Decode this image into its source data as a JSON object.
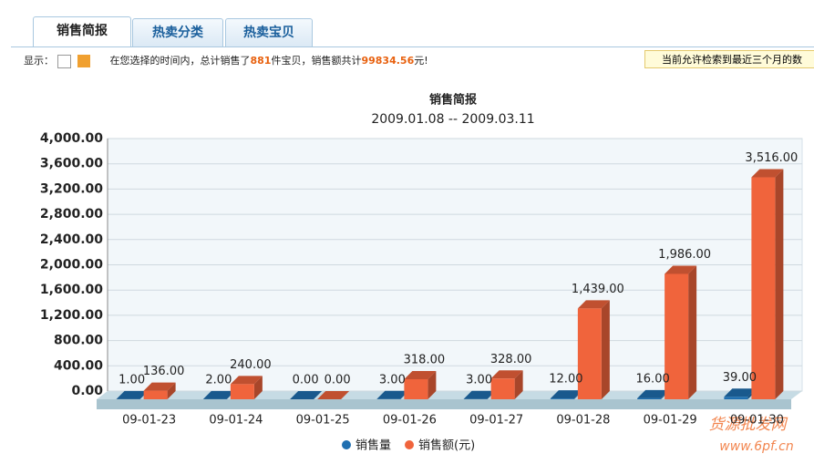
{
  "tabs": [
    "销售简报",
    "热卖分类",
    "热卖宝贝"
  ],
  "info": {
    "display_label": "显示：",
    "text_1": "在您选择的时间内，总计销售了",
    "count": "881",
    "text_2": "件宝贝，销售额共计",
    "amount": "99834.56",
    "text_3": "元!",
    "tip": "当前允许检索到最近三个月的数"
  },
  "watermark": [
    "货源批发网",
    "www.6pf.cn"
  ],
  "chart_data": {
    "type": "bar3d",
    "title": "销售简报",
    "subtitle": "2009.01.08 -- 2009.03.11",
    "categories": [
      "09-01-23",
      "09-01-24",
      "09-01-25",
      "09-01-26",
      "09-01-27",
      "09-01-28",
      "09-01-29",
      "09-01-30"
    ],
    "series": [
      {
        "name": "销售量",
        "color": "#1f6fb0",
        "values": [
          1,
          2,
          0,
          3,
          3,
          12,
          16,
          39
        ],
        "value_labels": [
          "1.00",
          "2.00",
          "0.00",
          "3.00",
          "3.00",
          "12.00",
          "16.00",
          "39.00"
        ]
      },
      {
        "name": "销售额(元)",
        "color": "#f0643c",
        "values": [
          136,
          240,
          0,
          318,
          328,
          1439,
          1986,
          3516
        ],
        "value_labels": [
          "136.00",
          "240.00",
          "0.00",
          "318.00",
          "328.00",
          "1,439.00",
          "1,986.00",
          "3,516.00"
        ]
      }
    ],
    "ylim": [
      0,
      4000
    ],
    "yticks": [
      {
        "value": 0,
        "label": "0.00"
      },
      {
        "value": 400,
        "label": "400.00"
      },
      {
        "value": 800,
        "label": "800.00"
      },
      {
        "value": 1200,
        "label": "1,200.00"
      },
      {
        "value": 1600,
        "label": "1,600.00"
      },
      {
        "value": 2000,
        "label": "2,000.00"
      },
      {
        "value": 2400,
        "label": "2,400.00"
      },
      {
        "value": 2800,
        "label": "2,800.00"
      },
      {
        "value": 3200,
        "label": "3,200.00"
      },
      {
        "value": 3600,
        "label": "3,600.00"
      },
      {
        "value": 4000,
        "label": "4,000.00"
      }
    ],
    "grid": true
  }
}
